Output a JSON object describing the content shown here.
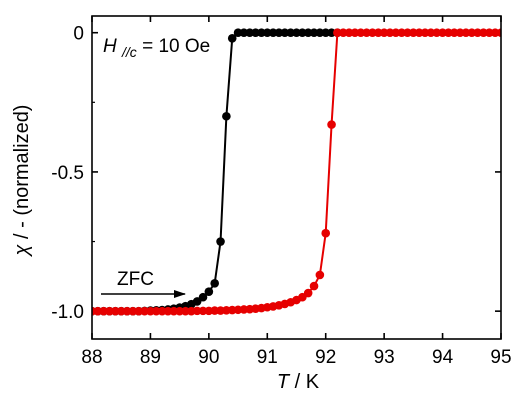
{
  "chart_data": {
    "type": "line",
    "xlabel_symbol": "T",
    "xlabel_unit": " / K",
    "ylabel_symbol": "χ",
    "ylabel_rest": " / - (normalized)",
    "xlim": [
      88,
      95
    ],
    "ylim": [
      -1.1,
      0.06
    ],
    "x_ticks": [
      88,
      89,
      90,
      91,
      92,
      93,
      94,
      95
    ],
    "x_tick_labels": [
      "88",
      "89",
      "90",
      "91",
      "92",
      "93",
      "94",
      "95"
    ],
    "y_ticks": [
      0,
      -0.5,
      -1.0
    ],
    "y_tick_labels": [
      "0",
      "-0.5",
      "-1.0"
    ],
    "grid": false,
    "annotations": {
      "field_symbol": "H",
      "field_subscript": "//c",
      "field_value": " = 10 Oe",
      "arrow_label": "ZFC"
    },
    "series": [
      {
        "color": "#000000",
        "x": [
          88.0,
          88.1,
          88.2,
          88.3,
          88.4,
          88.5,
          88.6,
          88.7,
          88.8,
          88.9,
          89.0,
          89.1,
          89.2,
          89.3,
          89.4,
          89.5,
          89.6,
          89.7,
          89.8,
          89.9,
          90.0,
          90.1,
          90.2,
          90.3,
          90.4,
          90.5,
          90.6,
          90.7,
          90.8,
          90.9,
          91.0,
          91.1,
          91.2,
          91.3,
          91.4,
          91.5,
          91.6,
          91.7,
          91.8,
          91.9,
          92.0,
          92.1,
          92.2
        ],
        "y": [
          -1.0,
          -1.0,
          -1.0,
          -1.0,
          -1.0,
          -1.0,
          -1.0,
          -1.0,
          -1.0,
          -0.999,
          -0.998,
          -0.997,
          -0.996,
          -0.994,
          -0.991,
          -0.987,
          -0.982,
          -0.975,
          -0.965,
          -0.95,
          -0.93,
          -0.9,
          -0.75,
          -0.3,
          -0.02,
          0.0,
          0.0,
          0.0,
          0.0,
          0.0,
          0.0,
          0.0,
          0.0,
          0.0,
          0.0,
          0.0,
          0.0,
          0.0,
          0.0,
          0.0,
          0.0,
          0.0,
          0.0
        ]
      },
      {
        "color": "#e60000",
        "x": [
          88.0,
          88.1,
          88.2,
          88.3,
          88.4,
          88.5,
          88.6,
          88.7,
          88.8,
          88.9,
          89.0,
          89.1,
          89.2,
          89.3,
          89.4,
          89.5,
          89.6,
          89.7,
          89.8,
          89.9,
          90.0,
          90.1,
          90.2,
          90.3,
          90.4,
          90.5,
          90.6,
          90.7,
          90.8,
          90.9,
          91.0,
          91.1,
          91.2,
          91.3,
          91.4,
          91.5,
          91.6,
          91.7,
          91.8,
          91.9,
          92.0,
          92.1,
          92.2,
          92.3,
          92.4,
          92.5,
          92.6,
          92.7,
          92.8,
          92.9,
          93.0,
          93.1,
          93.2,
          93.3,
          93.4,
          93.5,
          93.6,
          93.7,
          93.8,
          93.9,
          94.0,
          94.1,
          94.2,
          94.3,
          94.4,
          94.5,
          94.6,
          94.7,
          94.8,
          94.9,
          95.0
        ],
        "y": [
          -1.0,
          -1.0,
          -1.0,
          -1.0,
          -1.0,
          -1.0,
          -1.0,
          -1.0,
          -1.0,
          -1.0,
          -1.0,
          -1.0,
          -1.0,
          -1.0,
          -1.0,
          -1.0,
          -1.0,
          -1.0,
          -0.999,
          -0.999,
          -0.999,
          -0.998,
          -0.998,
          -0.997,
          -0.996,
          -0.995,
          -0.994,
          -0.993,
          -0.991,
          -0.989,
          -0.986,
          -0.983,
          -0.979,
          -0.974,
          -0.968,
          -0.96,
          -0.95,
          -0.935,
          -0.91,
          -0.87,
          -0.72,
          -0.33,
          0.0,
          0.0,
          0.0,
          0.0,
          0.0,
          0.0,
          0.0,
          0.0,
          0.0,
          0.0,
          0.0,
          0.0,
          0.0,
          0.0,
          0.0,
          0.0,
          0.0,
          0.0,
          0.0,
          0.0,
          0.0,
          0.0,
          0.0,
          0.0,
          0.0,
          0.0,
          0.0,
          0.0,
          0.0
        ]
      }
    ]
  }
}
